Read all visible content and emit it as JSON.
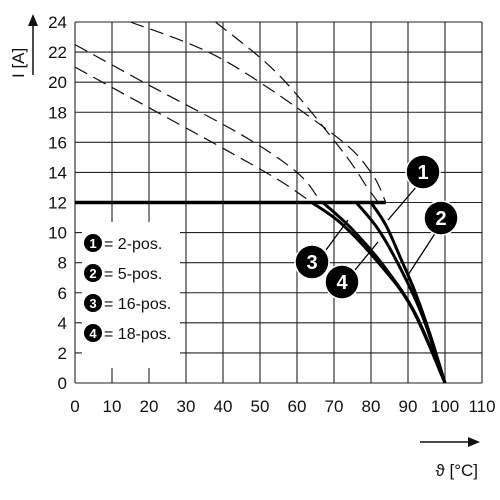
{
  "chart_data": {
    "type": "line",
    "title": "",
    "xlabel": "ϑ [°C]",
    "ylabel": "I [A]",
    "xlim": [
      0,
      110
    ],
    "ylim": [
      0,
      24
    ],
    "x_ticks": [
      0,
      10,
      20,
      30,
      40,
      50,
      60,
      70,
      80,
      90,
      100,
      110
    ],
    "y_ticks": [
      0,
      2,
      4,
      6,
      8,
      10,
      12,
      14,
      16,
      18,
      20,
      22,
      24
    ],
    "grid": true,
    "legend_position": "left",
    "legend": [
      {
        "marker": "1",
        "label": "= 2-pos."
      },
      {
        "marker": "2",
        "label": "= 5-pos."
      },
      {
        "marker": "3",
        "label": "= 16-pos."
      },
      {
        "marker": "4",
        "label": "= 18-pos."
      }
    ],
    "rated_current": {
      "y": 12,
      "x_end": 84
    },
    "series": [
      {
        "marker": "1",
        "derating_curve": [
          {
            "x": 80,
            "y": 12
          },
          {
            "x": 84,
            "y": 10.5
          },
          {
            "x": 88,
            "y": 8.3
          },
          {
            "x": 92,
            "y": 6.0
          },
          {
            "x": 96,
            "y": 3.2
          },
          {
            "x": 100,
            "y": 0
          }
        ],
        "base_curve": [
          {
            "x": 15,
            "y": 24
          },
          {
            "x": 40,
            "y": 21.5
          },
          {
            "x": 70,
            "y": 16.5
          },
          {
            "x": 80,
            "y": 14.0
          },
          {
            "x": 84,
            "y": 12.0
          }
        ]
      },
      {
        "marker": "2",
        "derating_curve": [
          {
            "x": 76,
            "y": 12
          },
          {
            "x": 82,
            "y": 10.2
          },
          {
            "x": 88,
            "y": 7.6
          },
          {
            "x": 94,
            "y": 4.4
          },
          {
            "x": 100,
            "y": 0
          }
        ],
        "base_curve": [
          {
            "x": 38,
            "y": 24
          },
          {
            "x": 55,
            "y": 20.5
          },
          {
            "x": 72,
            "y": 15.5
          },
          {
            "x": 79,
            "y": 13.0
          },
          {
            "x": 82,
            "y": 12.0
          }
        ]
      },
      {
        "marker": "3",
        "derating_curve": [
          {
            "x": 67,
            "y": 12
          },
          {
            "x": 75,
            "y": 10.2
          },
          {
            "x": 84,
            "y": 7.6
          },
          {
            "x": 92,
            "y": 4.6
          },
          {
            "x": 100,
            "y": 0
          }
        ],
        "base_curve": [
          {
            "x": 0,
            "y": 22.5
          },
          {
            "x": 20,
            "y": 19.8
          },
          {
            "x": 45,
            "y": 16.5
          },
          {
            "x": 60,
            "y": 14.0
          },
          {
            "x": 66,
            "y": 12.2
          }
        ]
      },
      {
        "marker": "4",
        "derating_curve": [
          {
            "x": 64,
            "y": 12
          },
          {
            "x": 72,
            "y": 10.6
          },
          {
            "x": 82,
            "y": 8.0
          },
          {
            "x": 91,
            "y": 5.0
          },
          {
            "x": 100,
            "y": 0
          }
        ],
        "base_curve": [
          {
            "x": 0,
            "y": 21.0
          },
          {
            "x": 20,
            "y": 18.3
          },
          {
            "x": 40,
            "y": 15.6
          },
          {
            "x": 55,
            "y": 13.5
          },
          {
            "x": 64,
            "y": 12.0
          }
        ]
      }
    ]
  }
}
